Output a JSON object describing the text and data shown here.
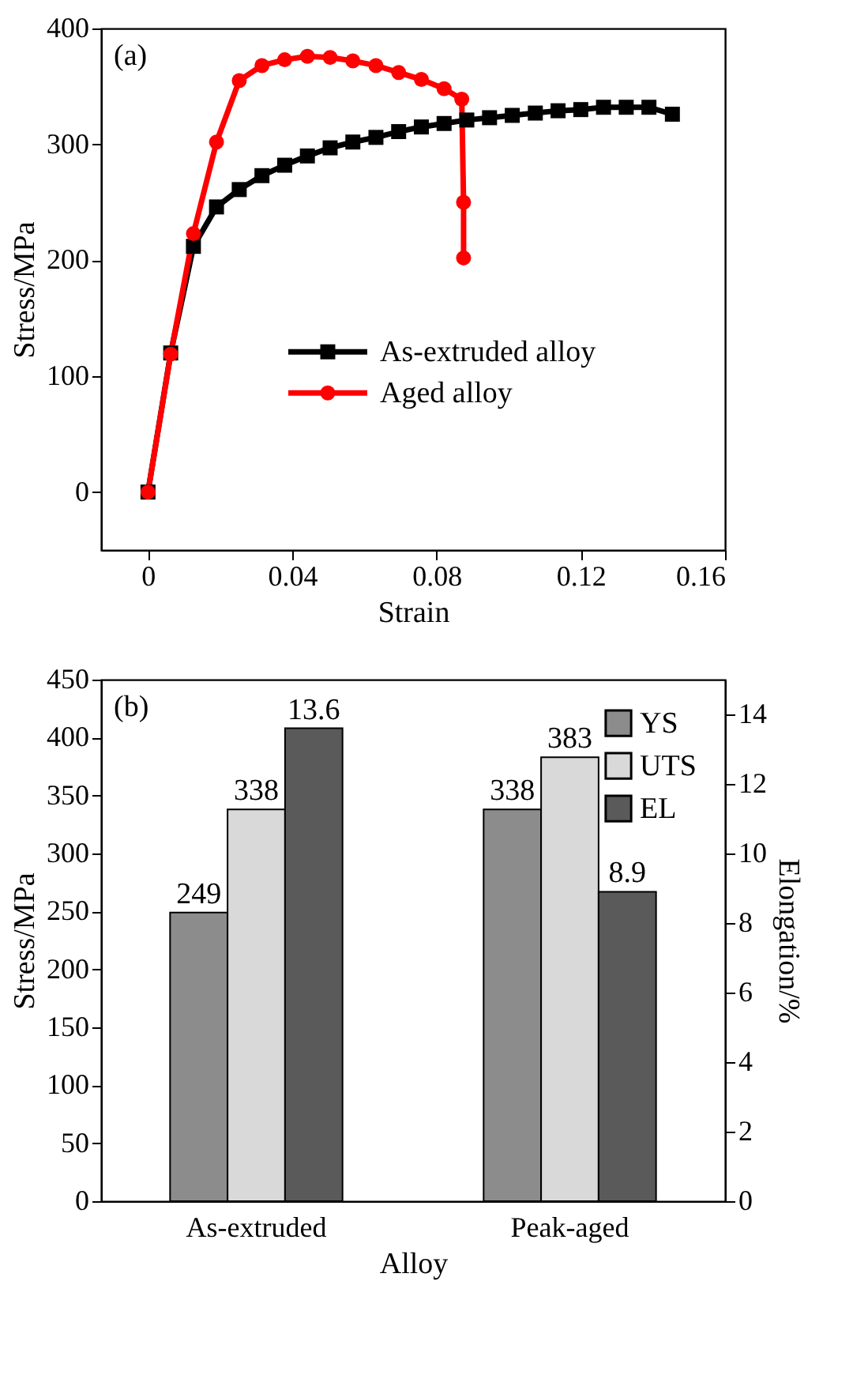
{
  "chart_data": [
    {
      "type": "line",
      "annotations": [
        "(a)"
      ],
      "xlabel": "Strain",
      "ylabel": "Stress/MPa",
      "xlim": [
        -0.013,
        0.16
      ],
      "xticks": [
        0,
        0.04,
        0.08,
        0.12,
        0.16
      ],
      "ylim": [
        -50,
        400
      ],
      "yticks": [
        0,
        100,
        200,
        300,
        400
      ],
      "legend": "right",
      "line_style": "solid",
      "series": [
        {
          "name": "As-extruded alloy",
          "color": "#000000",
          "marker": "square",
          "x": [
            0,
            0.0063,
            0.0126,
            0.019,
            0.0253,
            0.0316,
            0.0379,
            0.0442,
            0.0505,
            0.0568,
            0.0632,
            0.0695,
            0.0758,
            0.0821,
            0.0884,
            0.0947,
            0.101,
            0.1074,
            0.1137,
            0.12,
            0.1263,
            0.1326,
            0.1389,
            0.1454
          ],
          "values": [
            0,
            120,
            212,
            246,
            261,
            273,
            282,
            290,
            297,
            302,
            306,
            311,
            315,
            318,
            321,
            323,
            325,
            327,
            329,
            330,
            332,
            332,
            332,
            326
          ]
        },
        {
          "name": "Aged alloy",
          "color": "#ff0000",
          "marker": "circle",
          "x": [
            0,
            0.0063,
            0.0126,
            0.019,
            0.0253,
            0.0316,
            0.0379,
            0.0442,
            0.0505,
            0.0568,
            0.0632,
            0.0695,
            0.0758,
            0.0821,
            0.087,
            0.0875,
            0.0875
          ],
          "values": [
            0,
            119,
            223,
            302,
            355,
            368,
            373,
            376,
            375,
            372,
            368,
            362,
            356,
            348,
            339,
            250,
            202
          ]
        }
      ]
    },
    {
      "type": "bar",
      "annotations": [
        "(b)"
      ],
      "categories": [
        "As-extruded",
        "Peak-aged"
      ],
      "xlabel": "Alloy",
      "ylabel": "Stress/MPa",
      "y2label": "Elongation/%",
      "ylim": [
        0,
        450
      ],
      "yticks": [
        0,
        50,
        100,
        150,
        200,
        250,
        300,
        350,
        400,
        450
      ],
      "y2lim": [
        0,
        15
      ],
      "y2ticks": [
        0,
        2,
        4,
        6,
        8,
        10,
        12,
        14
      ],
      "legend": "top right",
      "data_labels": true,
      "series": [
        {
          "name": "YS",
          "color": "#8c8c8c",
          "values": [
            249,
            338
          ]
        },
        {
          "name": "UTS",
          "color": "#d9d9d9",
          "values": [
            338,
            383
          ]
        },
        {
          "name": "EL",
          "color": "#5a5a5a",
          "axis": "y2",
          "values": [
            13.6,
            8.9
          ]
        }
      ]
    }
  ]
}
